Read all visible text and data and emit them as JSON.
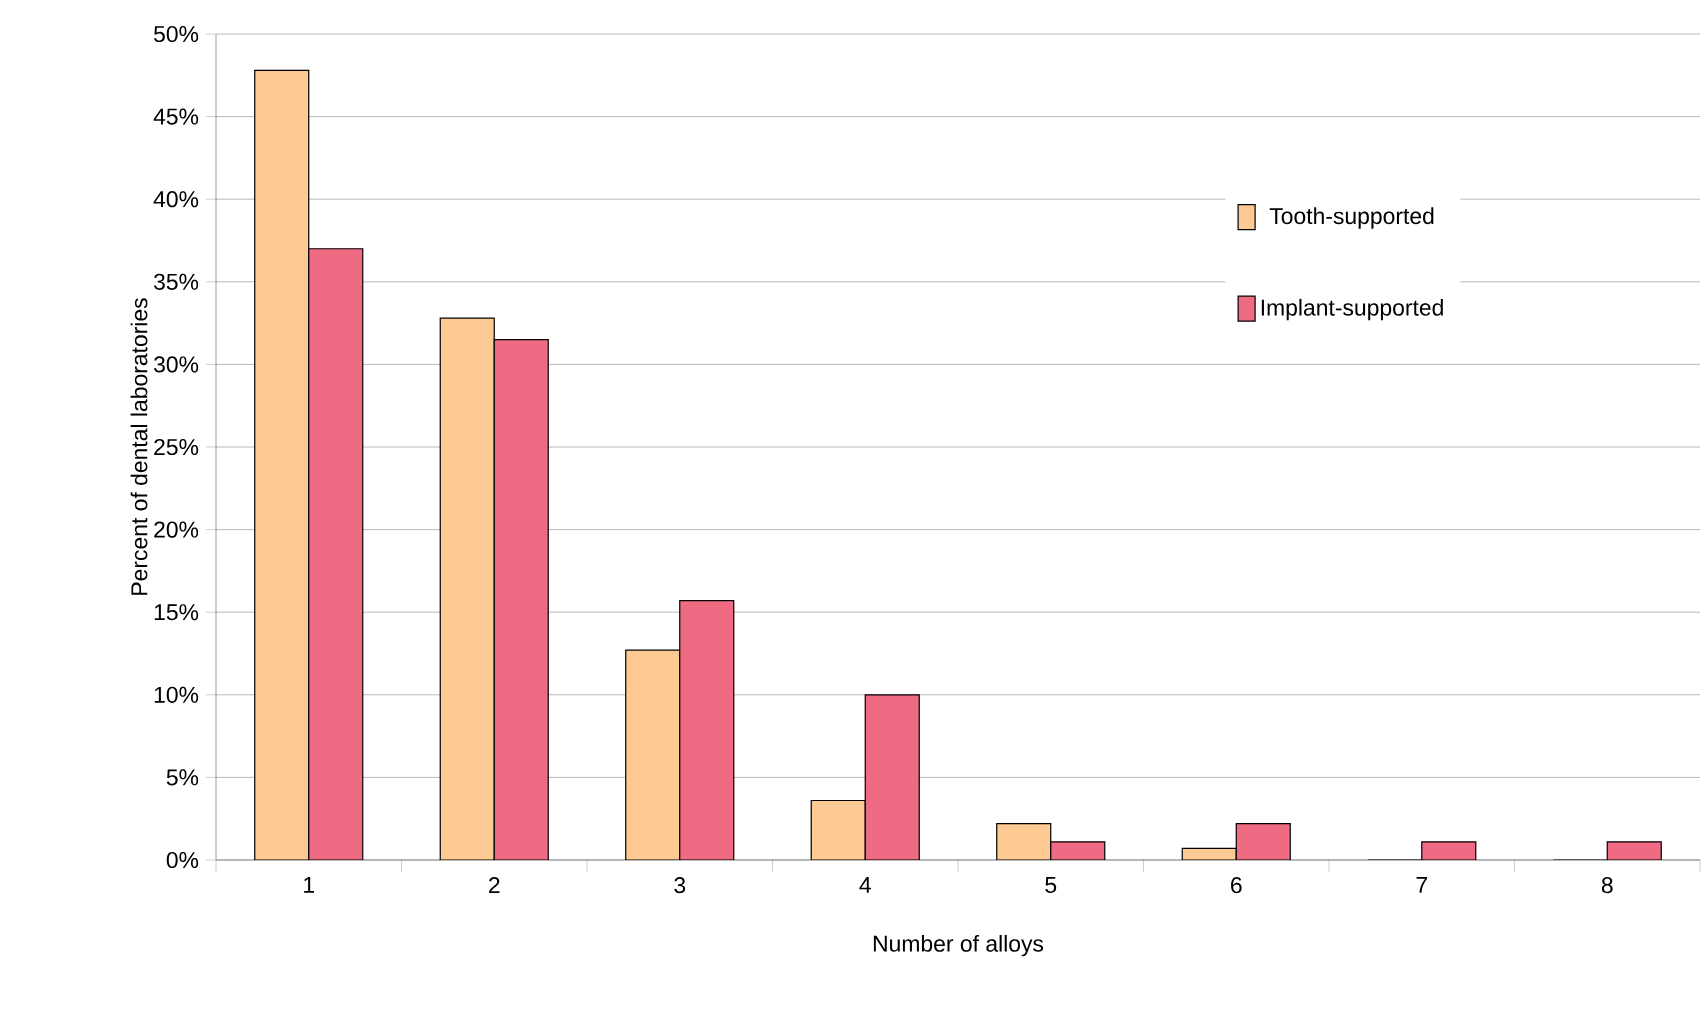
{
  "chart_data": {
    "type": "bar",
    "xlabel": "Number of alloys",
    "ylabel": "Percent of dental laboratories",
    "categories": [
      "1",
      "2",
      "3",
      "4",
      "5",
      "6",
      "7",
      "8"
    ],
    "series": [
      {
        "name": "Tooth-supported",
        "color": "#fdca93",
        "values": [
          47.8,
          32.8,
          12.7,
          3.6,
          2.2,
          0.7,
          0,
          0
        ]
      },
      {
        "name": "Implant-supported",
        "color": "#ef6b83",
        "values": [
          37.0,
          31.5,
          15.7,
          10.0,
          1.1,
          2.2,
          1.1,
          1.1
        ]
      }
    ],
    "ylim": [
      0,
      50
    ],
    "yticks": [
      {
        "value": 0,
        "label": "0%"
      },
      {
        "value": 5,
        "label": "5%"
      },
      {
        "value": 10,
        "label": "10%"
      },
      {
        "value": 15,
        "label": "15%"
      },
      {
        "value": 20,
        "label": "20%"
      },
      {
        "value": 25,
        "label": "25%"
      },
      {
        "value": 30,
        "label": "30%"
      },
      {
        "value": 35,
        "label": "35%"
      },
      {
        "value": 40,
        "label": "40%"
      },
      {
        "value": 45,
        "label": "45%"
      },
      {
        "value": 50,
        "label": "50%"
      }
    ],
    "grid": "y",
    "legend": "right"
  }
}
